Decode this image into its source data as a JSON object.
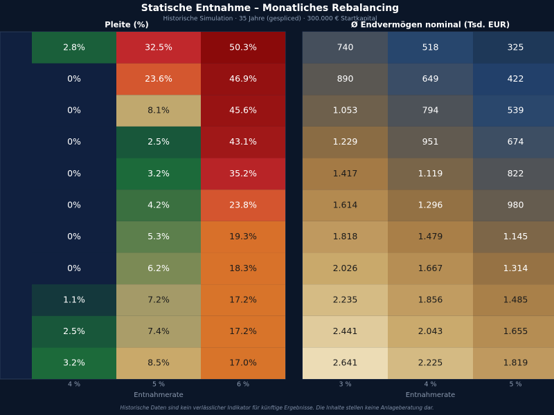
{
  "title": "Statische Entnahme – Monatliches Rebalancing",
  "subtitle": "Historische Simulation · 35 Jahre (gespliced) · 300.000 € Startkapital",
  "footnote": "Historische Daten sind kein verlässlicher Indikator für künftige Ergebnisse. Die Inhalte stellen keine Anlageberatung dar.",
  "chart_data": [
    {
      "type": "heatmap",
      "title": "Pleite (%)",
      "x_label": "Entnahmerate",
      "categories": [
        "4 %",
        "5 %",
        "6 %"
      ],
      "values": [
        [
          2.8,
          32.5,
          50.3
        ],
        [
          0,
          23.6,
          46.9
        ],
        [
          0,
          8.1,
          45.6
        ],
        [
          0,
          2.5,
          43.1
        ],
        [
          0,
          3.2,
          35.2
        ],
        [
          0,
          4.2,
          23.8
        ],
        [
          0,
          5.3,
          19.3
        ],
        [
          0,
          6.2,
          18.3
        ],
        [
          1.1,
          7.2,
          17.2
        ],
        [
          2.5,
          7.4,
          17.2
        ],
        [
          3.2,
          8.5,
          17.0
        ]
      ],
      "value_labels": [
        [
          "2.8%",
          "32.5%",
          "50.3%"
        ],
        [
          "0%",
          "23.6%",
          "46.9%"
        ],
        [
          "0%",
          "8.1%",
          "45.6%"
        ],
        [
          "0%",
          "2.5%",
          "43.1%"
        ],
        [
          "0%",
          "3.2%",
          "35.2%"
        ],
        [
          "0%",
          "4.2%",
          "23.8%"
        ],
        [
          "0%",
          "5.3%",
          "19.3%"
        ],
        [
          "0%",
          "6.2%",
          "18.3%"
        ],
        [
          "1.1%",
          "7.2%",
          "17.2%"
        ],
        [
          "2.5%",
          "7.4%",
          "17.2%"
        ],
        [
          "3.2%",
          "8.5%",
          "17.0%"
        ]
      ],
      "colorscale": [
        [
          0,
          "#10203f"
        ],
        [
          1.1,
          "#14383c"
        ],
        [
          2.5,
          "#18573a"
        ],
        [
          3.2,
          "#1c6a3a"
        ],
        [
          4.2,
          "#3a7040"
        ],
        [
          5.3,
          "#5c7f4c"
        ],
        [
          6.2,
          "#7b8a55"
        ],
        [
          7.2,
          "#a49a68"
        ],
        [
          8.1,
          "#c0a86e"
        ],
        [
          8.5,
          "#c9a96a"
        ],
        [
          17,
          "#d8742a"
        ],
        [
          19.3,
          "#d8702a"
        ],
        [
          23.7,
          "#d4562f"
        ],
        [
          32.5,
          "#c0282c"
        ],
        [
          43,
          "#a01818"
        ],
        [
          50.3,
          "#8a0a0a"
        ]
      ]
    },
    {
      "type": "heatmap",
      "title": "Ø Endvermögen nominal (Tsd. EUR)",
      "x_label": "Entnahmerate",
      "categories": [
        "3 %",
        "4 %",
        "5 %"
      ],
      "values": [
        [
          740,
          518,
          325
        ],
        [
          890,
          649,
          422
        ],
        [
          1053,
          794,
          539
        ],
        [
          1229,
          951,
          674
        ],
        [
          1417,
          1119,
          822
        ],
        [
          1614,
          1296,
          980
        ],
        [
          1818,
          1479,
          1145
        ],
        [
          2026,
          1667,
          1314
        ],
        [
          2235,
          1856,
          1485
        ],
        [
          2441,
          2043,
          1655
        ],
        [
          2641,
          2225,
          1819
        ]
      ],
      "value_labels": [
        [
          "740",
          "518",
          "325"
        ],
        [
          "890",
          "649",
          "422"
        ],
        [
          "1.053",
          "794",
          "539"
        ],
        [
          "1.229",
          "951",
          "674"
        ],
        [
          "1.417",
          "1.119",
          "822"
        ],
        [
          "1.614",
          "1.296",
          "980"
        ],
        [
          "1.818",
          "1.479",
          "1.145"
        ],
        [
          "2.026",
          "1.667",
          "1.314"
        ],
        [
          "2.235",
          "1.856",
          "1.485"
        ],
        [
          "2.441",
          "2.043",
          "1.655"
        ],
        [
          "2.641",
          "2.225",
          "1.819"
        ]
      ],
      "colorscale": [
        [
          325,
          "#1e3858"
        ],
        [
          422,
          "#22406a"
        ],
        [
          518,
          "#27466d"
        ],
        [
          650,
          "#3a4d66"
        ],
        [
          740,
          "#454f5c"
        ],
        [
          890,
          "#5a5752"
        ],
        [
          1053,
          "#6e604c"
        ],
        [
          1229,
          "#8a6c44"
        ],
        [
          1417,
          "#a47a45"
        ],
        [
          1614,
          "#b38a50"
        ],
        [
          1818,
          "#bf995f"
        ],
        [
          2026,
          "#c9a96b"
        ],
        [
          2235,
          "#d5bb84"
        ],
        [
          2441,
          "#e0cb9c"
        ],
        [
          2641,
          "#ecdcb5"
        ]
      ]
    }
  ]
}
